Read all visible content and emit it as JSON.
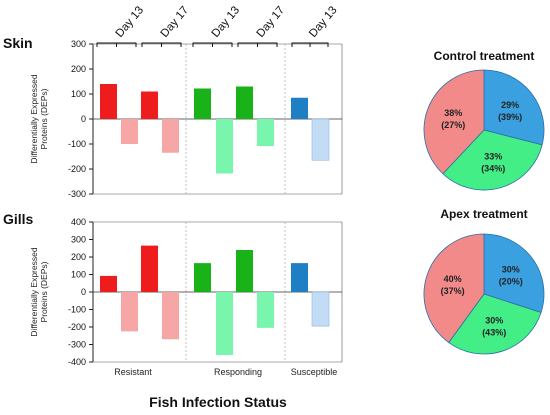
{
  "figure": {
    "x_title": "Fish Infection Status",
    "y_title_line1": "Differentially Expressed",
    "y_title_line2": "Proteins (DEPs)"
  },
  "colors": {
    "resistant_up": "#ee1c1c",
    "resistant_down": "#f7a6a6",
    "responding_up": "#19b319",
    "responding_down": "#7af5ad",
    "susceptible_up": "#1f7fc4",
    "susceptible_down": "#c2dcf5",
    "pie_red": "#f28a8a",
    "pie_green": "#44ee86",
    "pie_blue": "#3aa0e0"
  },
  "chart_data": [
    {
      "type": "bar",
      "title": "Skin",
      "ylabel": "Differentially Expressed Proteins (DEPs)",
      "ylim": [
        -300,
        300
      ],
      "yticks": [
        300,
        200,
        100,
        0,
        -100,
        -200,
        -300
      ],
      "groups": [
        "Resistant",
        "Responding",
        "Susceptible"
      ],
      "day_labels": [
        "Day 13",
        "Day 17",
        "Day 13",
        "Day 17",
        "Day 13"
      ],
      "series": [
        {
          "group": "Resistant",
          "day": "Day 13",
          "up": 140,
          "down": -100
        },
        {
          "group": "Resistant",
          "day": "Day 17",
          "up": 110,
          "down": -135
        },
        {
          "group": "Responding",
          "day": "Day 13",
          "up": 122,
          "down": -218
        },
        {
          "group": "Responding",
          "day": "Day 17",
          "up": 130,
          "down": -108
        },
        {
          "group": "Susceptible",
          "day": "Day 13",
          "up": 85,
          "down": -165
        }
      ]
    },
    {
      "type": "bar",
      "title": "Gills",
      "ylabel": "Differentially Expressed Proteins (DEPs)",
      "ylim": [
        -400,
        400
      ],
      "yticks": [
        400,
        300,
        200,
        100,
        0,
        -100,
        -200,
        -300,
        -400
      ],
      "groups": [
        "Resistant",
        "Responding",
        "Susceptible"
      ],
      "series": [
        {
          "group": "Resistant",
          "day": "Day 13",
          "up": 92,
          "down": -225
        },
        {
          "group": "Resistant",
          "day": "Day 17",
          "up": 265,
          "down": -270
        },
        {
          "group": "Responding",
          "day": "Day 13",
          "up": 165,
          "down": -360
        },
        {
          "group": "Responding",
          "day": "Day 17",
          "up": 240,
          "down": -205
        },
        {
          "group": "Susceptible",
          "day": "Day 13",
          "up": 165,
          "down": -195
        }
      ]
    },
    {
      "type": "pie",
      "title": "Control treatment",
      "slices": [
        {
          "value": 29,
          "label_line1": "29%",
          "label_line2": "(39%)",
          "color_key": "pie_blue"
        },
        {
          "value": 33,
          "label_line1": "33%",
          "label_line2": "(34%)",
          "color_key": "pie_green"
        },
        {
          "value": 38,
          "label_line1": "38%",
          "label_line2": "(27%)",
          "color_key": "pie_red"
        }
      ]
    },
    {
      "type": "pie",
      "title": "Apex treatment",
      "slices": [
        {
          "value": 30,
          "label_line1": "30%",
          "label_line2": "(20%)",
          "color_key": "pie_blue"
        },
        {
          "value": 30,
          "label_line1": "30%",
          "label_line2": "(43%)",
          "color_key": "pie_green"
        },
        {
          "value": 40,
          "label_line1": "40%",
          "label_line2": "(37%)",
          "color_key": "pie_red"
        }
      ]
    }
  ]
}
